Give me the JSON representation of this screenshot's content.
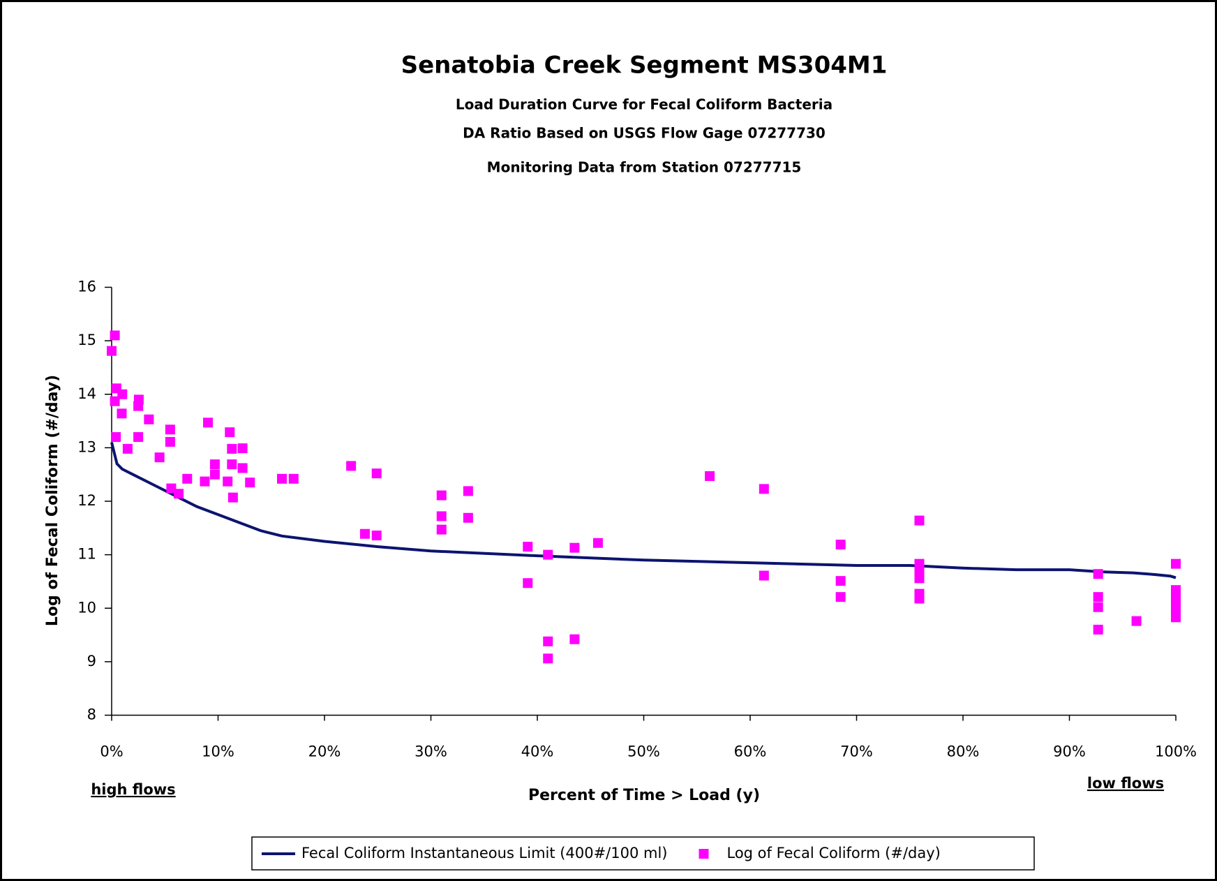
{
  "chart_data": {
    "type": "line",
    "title": "Senatobia Creek Segment MS304M1",
    "subtitles": [
      "Load Duration Curve for Fecal Coliform Bacteria",
      "DA Ratio Based on USGS Flow Gage 07277730",
      "Monitoring Data from Station 07277715"
    ],
    "xlabel": "Percent of Time > Load (y)",
    "ylabel": "Log of Fecal Coliform (#/day)",
    "annotations": [
      "high flows",
      "low flows"
    ],
    "xlim": [
      0,
      100
    ],
    "ylim": [
      8,
      16
    ],
    "xticks": [
      {
        "value": 0,
        "label": "0%"
      },
      {
        "value": 10,
        "label": "10%"
      },
      {
        "value": 20,
        "label": "20%"
      },
      {
        "value": 30,
        "label": "30%"
      },
      {
        "value": 40,
        "label": "40%"
      },
      {
        "value": 50,
        "label": "50%"
      },
      {
        "value": 60,
        "label": "60%"
      },
      {
        "value": 70,
        "label": "70%"
      },
      {
        "value": 80,
        "label": "80%"
      },
      {
        "value": 90,
        "label": "90%"
      },
      {
        "value": 100,
        "label": "100%"
      }
    ],
    "yticks": [
      8,
      9,
      10,
      11,
      12,
      13,
      14,
      15,
      16
    ],
    "legend": "bottom",
    "series": [
      {
        "name": "Fecal Coliform Instantaneous Limit (400#/100 ml)",
        "type": "line",
        "color": "#0c1470",
        "x": [
          0,
          0.5,
          1,
          2,
          4,
          6,
          8,
          10,
          12,
          14,
          16,
          20,
          25,
          30,
          40,
          50,
          60,
          70,
          75,
          80,
          85,
          90,
          93,
          96,
          98,
          99.5,
          100
        ],
        "values": [
          13.1,
          12.7,
          12.6,
          12.5,
          12.3,
          12.1,
          11.9,
          11.75,
          11.6,
          11.45,
          11.35,
          11.25,
          11.15,
          11.07,
          10.98,
          10.9,
          10.85,
          10.8,
          10.8,
          10.75,
          10.72,
          10.72,
          10.68,
          10.66,
          10.63,
          10.6,
          10.57
        ]
      },
      {
        "name": "Log of Fecal Coliform (#/day)",
        "type": "scatter",
        "color": "#ff00ff",
        "x": [
          0,
          0.3,
          0.45,
          0.3,
          0.4,
          1.0,
          0.95,
          1.5,
          2.55,
          2.5,
          2.5,
          3.5,
          4.5,
          5.5,
          5.5,
          5.6,
          6.3,
          7.1,
          8.75,
          9.05,
          9.7,
          9.7,
          10.9,
          11.1,
          11.3,
          11.3,
          11.4,
          12.3,
          12.3,
          13.0,
          16.0,
          17.1,
          22.5,
          23.8,
          24.9,
          24.9,
          31.0,
          31.0,
          31.0,
          33.5,
          33.5,
          39.1,
          39.1,
          41.0,
          41.0,
          41.0,
          43.5,
          43.5,
          45.7,
          56.2,
          61.3,
          61.3,
          68.5,
          68.5,
          68.5,
          75.9,
          75.9,
          75.9,
          75.9,
          75.9,
          75.9,
          92.7,
          92.7,
          92.7,
          92.7,
          96.3,
          100,
          100,
          100,
          100,
          100,
          100
        ],
        "values": [
          14.81,
          15.1,
          14.11,
          13.87,
          13.2,
          14.0,
          13.64,
          12.98,
          13.9,
          13.78,
          13.2,
          13.53,
          12.82,
          13.34,
          13.11,
          12.24,
          12.14,
          12.42,
          12.37,
          13.47,
          12.69,
          12.5,
          12.37,
          13.29,
          12.98,
          12.69,
          12.07,
          12.99,
          12.62,
          12.35,
          12.42,
          12.42,
          12.66,
          11.39,
          12.52,
          11.36,
          12.11,
          11.72,
          11.47,
          12.19,
          11.69,
          11.15,
          10.47,
          11.0,
          9.38,
          9.06,
          11.13,
          9.42,
          11.22,
          12.47,
          12.23,
          10.61,
          11.19,
          10.51,
          10.21,
          11.64,
          10.83,
          10.7,
          10.56,
          10.27,
          10.18,
          10.64,
          10.21,
          10.02,
          9.6,
          9.76,
          10.83,
          10.34,
          10.17,
          10.0,
          9.83,
          9.93
        ]
      }
    ]
  }
}
